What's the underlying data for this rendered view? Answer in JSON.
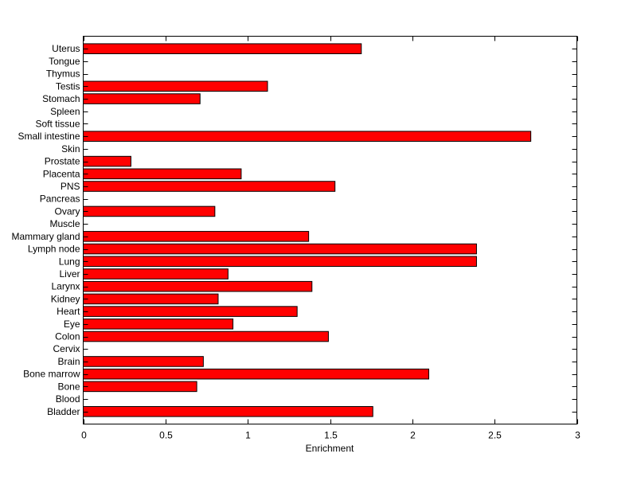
{
  "chart_data": {
    "type": "bar",
    "orientation": "horizontal",
    "title": "",
    "xlabel": "Enrichment",
    "ylabel": "",
    "xlim": [
      0,
      3
    ],
    "xticks": [
      "0",
      "0.5",
      "1",
      "1.5",
      "2",
      "2.5",
      "3"
    ],
    "grid": false,
    "bar_color": "#ff0000",
    "categories": [
      "Bladder",
      "Blood",
      "Bone",
      "Bone marrow",
      "Brain",
      "Cervix",
      "Colon",
      "Eye",
      "Heart",
      "Kidney",
      "Larynx",
      "Liver",
      "Lung",
      "Lymph node",
      "Mammary gland",
      "Muscle",
      "Ovary",
      "Pancreas",
      "PNS",
      "Placenta",
      "Prostate",
      "Skin",
      "Small intestine",
      "Soft tissue",
      "Spleen",
      "Stomach",
      "Testis",
      "Thymus",
      "Tongue",
      "Uterus"
    ],
    "values": [
      1.76,
      0,
      0.69,
      2.1,
      0.73,
      0,
      1.49,
      0.91,
      1.3,
      0.82,
      1.39,
      0.88,
      2.39,
      2.39,
      1.37,
      0,
      0.8,
      0,
      1.53,
      0.96,
      0.29,
      0,
      2.72,
      0,
      0,
      0.71,
      1.12,
      0,
      0,
      1.69
    ]
  }
}
